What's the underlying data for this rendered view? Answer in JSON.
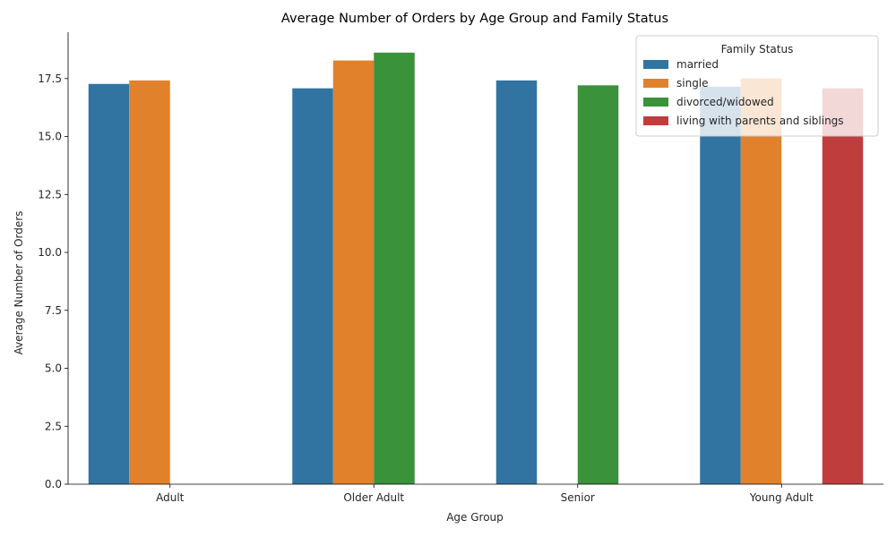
{
  "chart_data": {
    "type": "bar",
    "title": "Average Number of Orders by Age Group and Family Status",
    "xlabel": "Age Group",
    "ylabel": "Average Number of Orders",
    "categories": [
      "Adult",
      "Older Adult",
      "Senior",
      "Young Adult"
    ],
    "ylim": [
      0,
      19.5
    ],
    "yticks": [
      "0.0",
      "2.5",
      "5.0",
      "7.5",
      "10.0",
      "12.5",
      "15.0",
      "17.5"
    ],
    "legend": {
      "title": "Family Status",
      "placement": "top-right"
    },
    "series": [
      {
        "name": "married",
        "color": "#3274a1",
        "values": [
          17.27,
          17.08,
          17.42,
          17.15
        ]
      },
      {
        "name": "single",
        "color": "#e1812c",
        "values": [
          17.42,
          18.28,
          null,
          17.51
        ]
      },
      {
        "name": "divorced/widowed",
        "color": "#3a923a",
        "values": [
          null,
          18.62,
          17.21,
          null
        ]
      },
      {
        "name": "living with parents and siblings",
        "color": "#c03d3e",
        "values": [
          null,
          null,
          null,
          17.08
        ]
      }
    ]
  }
}
